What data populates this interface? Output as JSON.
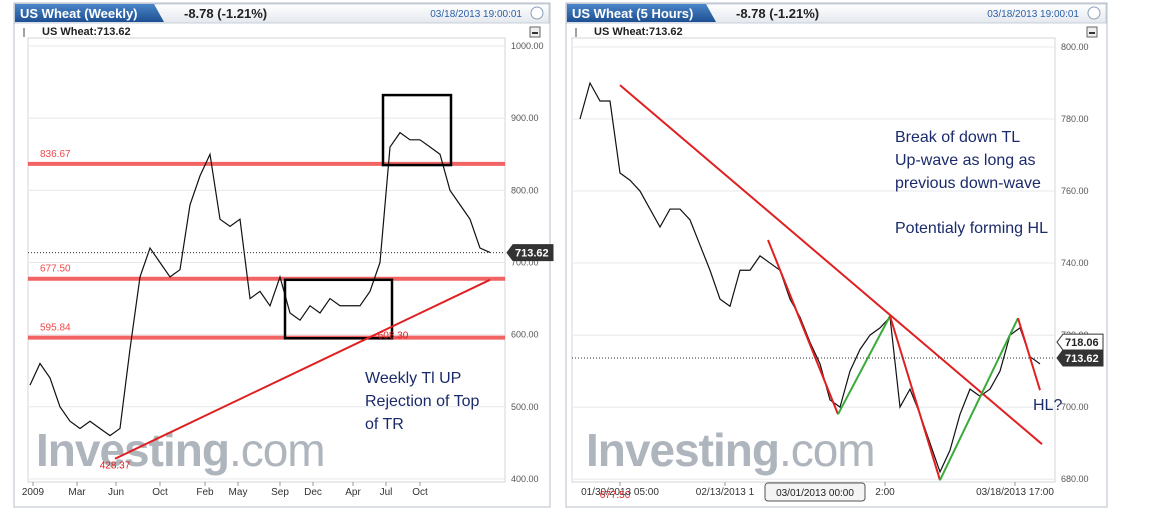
{
  "chart_data": [
    {
      "type": "line",
      "title": "US Wheat (Weekly)",
      "change": "-8.78 (-1.21%)",
      "timestamp": "03/18/2013 19:00:01",
      "instrument": "US Wheat:713.62",
      "watermark": [
        "Investing",
        ".com"
      ],
      "x": [
        0,
        1,
        2,
        3,
        4,
        5,
        6,
        7,
        8,
        9,
        10,
        11,
        12,
        13,
        14,
        15,
        16,
        17,
        18,
        19,
        20,
        21,
        22,
        23,
        24,
        25,
        26,
        27,
        28,
        29,
        30,
        31,
        32,
        33,
        34,
        35,
        36,
        37,
        38,
        39,
        40,
        41,
        42,
        43,
        44,
        45,
        46
      ],
      "series": [
        {
          "color": "#111111",
          "values": [
            530,
            560,
            540,
            500,
            480,
            470,
            480,
            470,
            460,
            470,
            580,
            680,
            720,
            700,
            680,
            690,
            780,
            820,
            850,
            760,
            750,
            760,
            650,
            660,
            640,
            680,
            630,
            620,
            640,
            630,
            650,
            640,
            640,
            640,
            660,
            700,
            860,
            880,
            870,
            870,
            860,
            850,
            800,
            780,
            760,
            720,
            714
          ]
        }
      ],
      "xlim": [
        -0.2,
        47.5
      ],
      "ylim": [
        395.8,
        1011.1
      ],
      "xticks": [
        {
          "value": 0.3,
          "label": "2009"
        },
        {
          "value": 4.7,
          "label": "Mar"
        },
        {
          "value": 8.6,
          "label": "Jun"
        },
        {
          "value": 13,
          "label": "Oct"
        },
        {
          "value": 17.5,
          "label": "Feb"
        },
        {
          "value": 20.8,
          "label": "May"
        },
        {
          "value": 25,
          "label": "Sep"
        },
        {
          "value": 28.3,
          "label": "Dec"
        },
        {
          "value": 32.3,
          "label": "Apr"
        },
        {
          "value": 35.6,
          "label": "Jul"
        },
        {
          "value": 39,
          "label": "Oct"
        }
      ],
      "yticks": [
        {
          "value": 400,
          "label": "400.00"
        },
        {
          "value": 500,
          "label": "500.00"
        },
        {
          "value": 600,
          "label": "600.00"
        },
        {
          "value": 700,
          "label": "700.00"
        },
        {
          "value": 800,
          "label": "800.00"
        },
        {
          "value": 900,
          "label": "900.00"
        },
        {
          "value": 1000,
          "label": "1000.00"
        }
      ],
      "grid": true,
      "levels": [
        {
          "value": 836.67,
          "label": "836.67"
        },
        {
          "value": 677.5,
          "label": "677.50"
        },
        {
          "value": 595.84,
          "label": "595.84"
        }
      ],
      "level_color": "#f04848",
      "boxes": [
        {
          "x": [
            35.3,
            42.1
          ],
          "y": [
            835,
            932
          ]
        },
        {
          "x": [
            25.5,
            36.2
          ],
          "y": [
            595,
            676
          ]
        }
      ],
      "trendlines": [
        {
          "color": "#e02020",
          "x": [
            8.5,
            46
          ],
          "y": [
            428,
            676
          ]
        }
      ],
      "price_labels": [
        {
          "x": 8.5,
          "value": 428.37,
          "label": "428.37"
        },
        {
          "x": 36.3,
          "value": 608.3,
          "label": "608.30"
        }
      ],
      "last": {
        "value": 713.62,
        "label": "713.62"
      },
      "annotations": [
        "Weekly Tl UP",
        "Rejection of Top",
        "of TR"
      ]
    },
    {
      "type": "line",
      "title": "US Wheat (5 Hours)",
      "change": "-8.78 (-1.21%)",
      "timestamp": "03/18/2013 19:00:01",
      "instrument": "US Wheat:713.62",
      "watermark": [
        "Investing",
        ".com"
      ],
      "x": [
        0,
        1,
        2,
        3,
        4,
        5,
        6,
        7,
        8,
        9,
        10,
        11,
        12,
        13,
        14,
        15,
        16,
        17,
        18,
        19,
        20,
        21,
        22,
        23,
        24,
        25,
        26,
        27,
        28,
        29,
        30,
        31,
        32,
        33,
        34,
        35,
        36,
        37,
        38,
        39,
        40,
        41,
        42,
        43,
        44,
        45,
        46
      ],
      "series": [
        {
          "color": "#111111",
          "values": [
            780,
            790,
            785,
            785,
            765,
            763,
            760,
            755,
            750,
            755,
            755,
            752,
            745,
            738,
            730,
            728,
            738,
            738,
            742,
            740,
            738,
            730,
            725,
            718,
            712,
            702,
            700,
            710,
            716,
            720,
            722,
            725,
            700,
            705,
            698,
            690,
            682,
            688,
            698,
            705,
            703,
            705,
            710,
            720,
            722,
            714,
            712
          ]
        }
      ],
      "xlim": [
        -0.8,
        47.5
      ],
      "ylim": [
        679.2,
        802.5
      ],
      "xticks": [
        {
          "value": 4,
          "label": "01/30/2013 05:00"
        },
        {
          "value": 14.5,
          "label": "02/13/2013 1"
        },
        {
          "value": 30.5,
          "label": "2:00"
        },
        {
          "value": 43.5,
          "label": "03/18/2013 17:00"
        }
      ],
      "xhighlight": {
        "value": 23.5,
        "label": "03/01/2013 00:00"
      },
      "yticks": [
        {
          "value": 680,
          "label": "680.00"
        },
        {
          "value": 700,
          "label": "700.00"
        },
        {
          "value": 720,
          "label": "720.00"
        },
        {
          "value": 740,
          "label": "740.00"
        },
        {
          "value": 760,
          "label": "760.00"
        },
        {
          "value": 780,
          "label": "780.00"
        },
        {
          "value": 800,
          "label": "800.00"
        }
      ],
      "grid": true,
      "trendlines": [
        {
          "color": "#e02020",
          "x": [
            4,
            46.2
          ],
          "y": [
            789.4,
            689.7
          ]
        },
        {
          "color": "#e02020",
          "x": [
            18.8,
            25.8
          ],
          "y": [
            746.4,
            698
          ]
        },
        {
          "color": "#3aaa3a",
          "x": [
            25.8,
            31
          ],
          "y": [
            698,
            725.3
          ]
        },
        {
          "color": "#e02020",
          "x": [
            31,
            36
          ],
          "y": [
            725.3,
            679.7
          ]
        },
        {
          "color": "#3aaa3a",
          "x": [
            36,
            43.8
          ],
          "y": [
            679.7,
            724.7
          ]
        },
        {
          "color": "#e02020",
          "x": [
            43.8,
            46
          ],
          "y": [
            724.7,
            704.7
          ]
        }
      ],
      "price_labels": [
        {
          "x": 3.5,
          "value": 677.5,
          "label": "677.50"
        }
      ],
      "prev": {
        "value": 718.06,
        "label": "718.06"
      },
      "last": {
        "value": 713.62,
        "label": "713.62"
      },
      "annotations": [
        "Break of down TL",
        "Up-wave as long as",
        "previous down-wave",
        "Potentialy forming HL",
        "HL?"
      ]
    }
  ]
}
